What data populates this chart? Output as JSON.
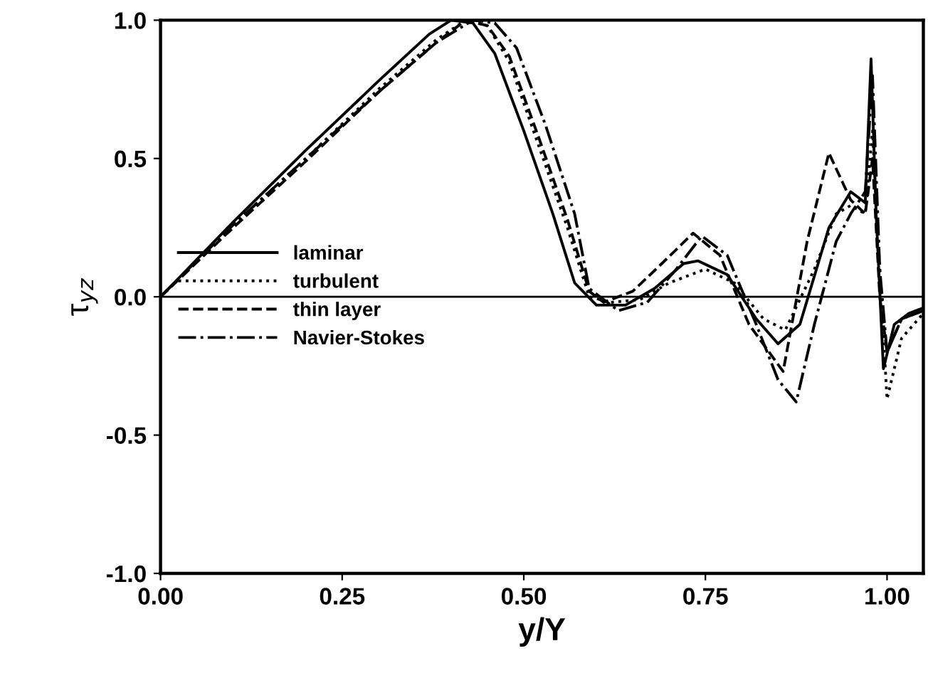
{
  "chart_data": {
    "type": "line",
    "xlabel": "y/Y",
    "ylabel": "τ$_{yz}$",
    "xlim": [
      0,
      1.05
    ],
    "ylim": [
      -1.0,
      1.0
    ],
    "xticks": [
      {
        "value": 0,
        "label": "0.00"
      },
      0.25,
      {
        "value": 0.5,
        "label": "0.50"
      },
      0.75,
      {
        "value": 1,
        "label": "1.00"
      }
    ],
    "yticks": [
      {
        "value": -1,
        "label": "-1.0"
      },
      -0.5,
      {
        "value": 0,
        "label": "0.0"
      },
      0.5,
      {
        "value": 1,
        "label": "1.0"
      }
    ],
    "ref_lines": [
      {
        "axis": "y",
        "value": 0,
        "color": "#000000"
      }
    ],
    "legend": "center left",
    "grid": false,
    "marker": "none",
    "series": [
      {
        "name": "laminar",
        "color": "#000000",
        "line_style": "solid",
        "x": [
          0,
          0.1,
          0.2,
          0.3,
          0.37,
          0.4,
          0.43,
          0.46,
          0.5,
          0.54,
          0.57,
          0.6,
          0.64,
          0.68,
          0.72,
          0.74,
          0.78,
          0.82,
          0.85,
          0.88,
          0.92,
          0.95,
          0.97,
          0.978,
          0.985,
          0.995,
          1.01,
          1.03,
          1.05
        ],
        "values": [
          0,
          0.27,
          0.53,
          0.78,
          0.95,
          1.0,
          0.99,
          0.88,
          0.6,
          0.3,
          0.05,
          -0.03,
          -0.03,
          0.03,
          0.12,
          0.13,
          0.08,
          -0.08,
          -0.17,
          -0.1,
          0.25,
          0.38,
          0.34,
          0.86,
          0.3,
          -0.26,
          -0.1,
          -0.06,
          -0.04
        ]
      },
      {
        "name": "turbulent",
        "color": "#000000",
        "line_style": "dotted",
        "x": [
          0,
          0.1,
          0.2,
          0.3,
          0.38,
          0.42,
          0.45,
          0.48,
          0.52,
          0.56,
          0.59,
          0.62,
          0.66,
          0.7,
          0.75,
          0.79,
          0.83,
          0.86,
          0.9,
          0.93,
          0.95,
          0.97,
          0.98,
          0.99,
          1.0,
          1.02,
          1.05
        ],
        "values": [
          0,
          0.26,
          0.5,
          0.75,
          0.93,
          1.0,
          0.98,
          0.85,
          0.55,
          0.25,
          0.0,
          -0.02,
          -0.01,
          0.05,
          0.1,
          0.05,
          -0.08,
          -0.12,
          0.1,
          0.3,
          0.33,
          0.3,
          0.6,
          0.1,
          -0.37,
          -0.15,
          -0.06
        ]
      },
      {
        "name": "thin layer",
        "color": "#000000",
        "line_style": "dashed",
        "x": [
          0,
          0.1,
          0.2,
          0.3,
          0.38,
          0.42,
          0.45,
          0.48,
          0.52,
          0.56,
          0.59,
          0.61,
          0.65,
          0.69,
          0.733,
          0.77,
          0.81,
          0.857,
          0.89,
          0.92,
          0.95,
          0.97,
          0.98,
          0.99,
          1.0,
          1.02,
          1.05
        ],
        "values": [
          0,
          0.25,
          0.49,
          0.74,
          0.92,
          1.0,
          0.98,
          0.87,
          0.58,
          0.28,
          0.02,
          -0.02,
          0.02,
          0.12,
          0.23,
          0.15,
          -0.1,
          -0.27,
          0.2,
          0.52,
          0.35,
          0.3,
          0.5,
          0.0,
          -0.2,
          -0.08,
          -0.05
        ]
      },
      {
        "name": "Navier-Stokes",
        "color": "#000000",
        "line_style": "dashdot",
        "x": [
          0,
          0.1,
          0.2,
          0.3,
          0.38,
          0.43,
          0.46,
          0.49,
          0.53,
          0.57,
          0.59,
          0.63,
          0.67,
          0.71,
          0.745,
          0.78,
          0.82,
          0.85,
          0.875,
          0.9,
          0.93,
          0.95,
          0.97,
          0.98,
          0.99,
          1.0,
          1.02,
          1.05
        ],
        "values": [
          0,
          0.26,
          0.5,
          0.74,
          0.92,
          1.0,
          0.99,
          0.9,
          0.62,
          0.3,
          0.03,
          -0.05,
          -0.02,
          0.1,
          0.22,
          0.15,
          -0.1,
          -0.3,
          -0.38,
          -0.1,
          0.2,
          0.3,
          0.38,
          0.8,
          0.1,
          -0.2,
          -0.08,
          -0.05
        ]
      }
    ]
  }
}
